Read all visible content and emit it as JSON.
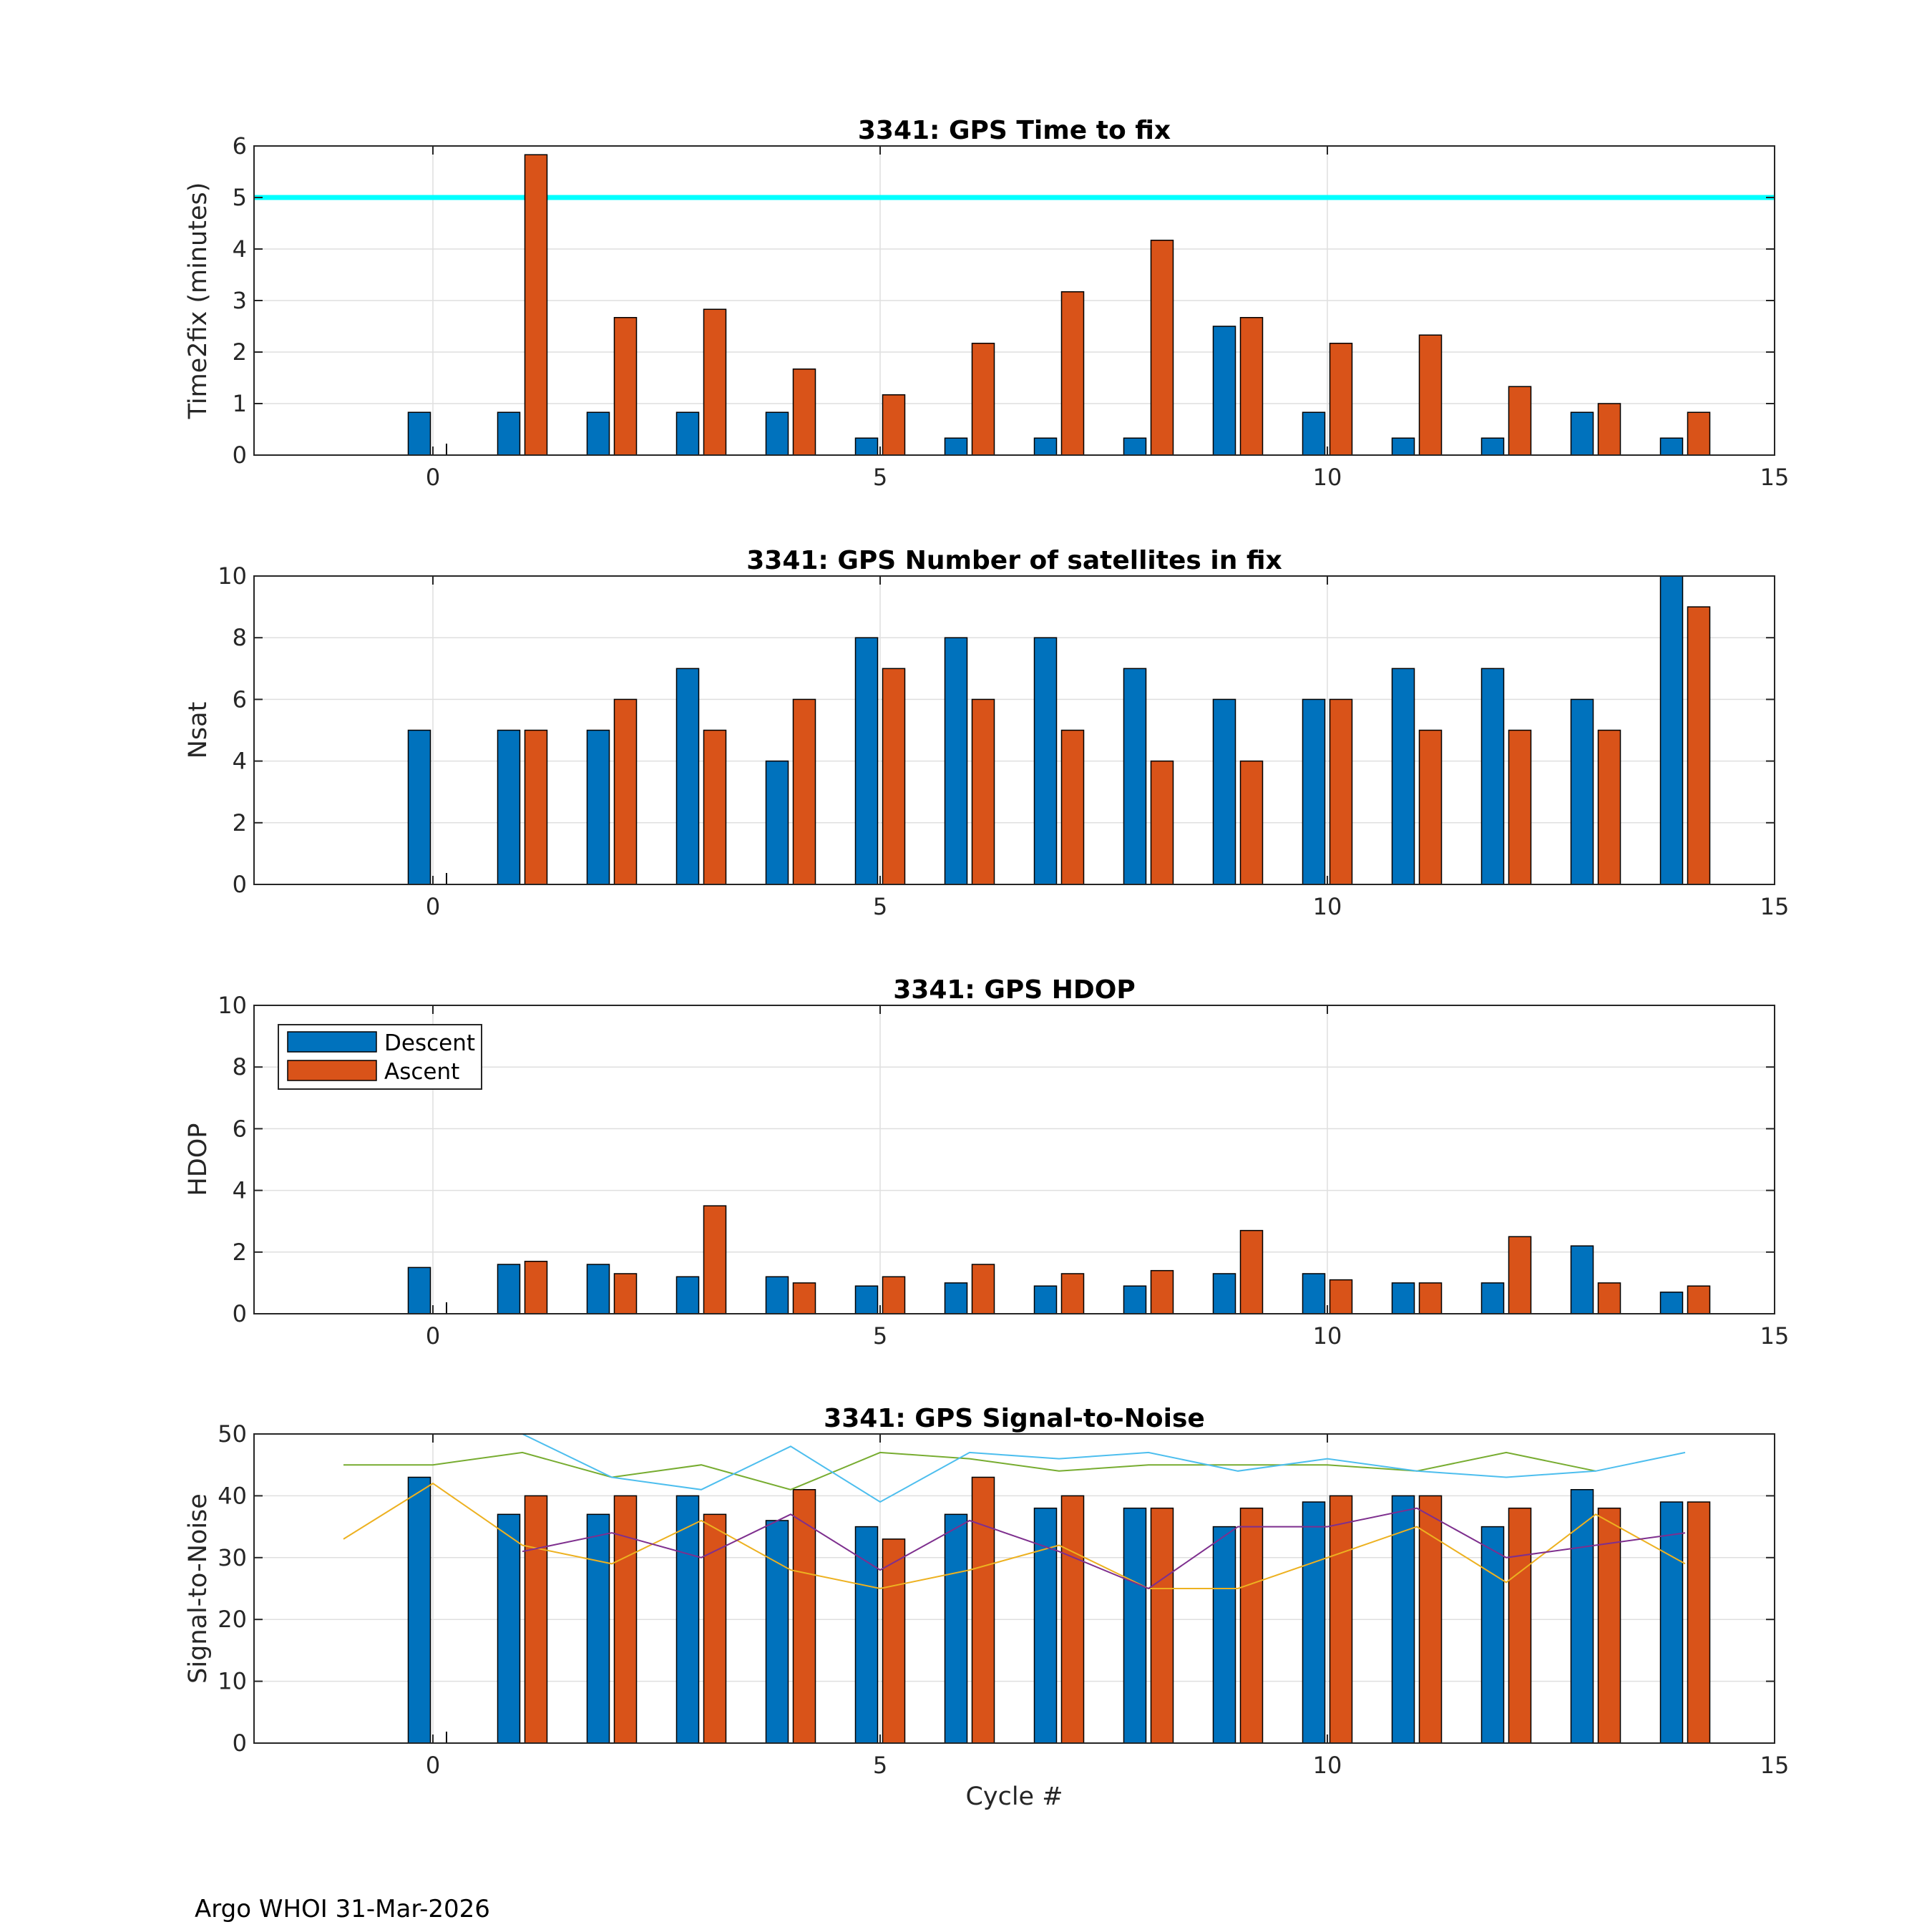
{
  "footer": "Argo WHOI 31-Mar-2026",
  "colors": {
    "descent": "#0072BD",
    "ascent": "#D95319",
    "threshold": "#00FFFF",
    "grid": "#DFDFDF",
    "line_green": "#77AC30",
    "line_cyan": "#4DBEEE",
    "line_orange": "#EDB120",
    "line_purple": "#7E2F8E"
  },
  "legend": {
    "descent": "Descent",
    "ascent": "Ascent"
  },
  "chart_data": [
    {
      "type": "bar",
      "title": "3341: GPS Time to fix",
      "xlabel": "",
      "ylabel": "Time2fix (minutes)",
      "xlim": [
        -2,
        15
      ],
      "ylim": [
        0,
        6
      ],
      "xticks": [
        0,
        5,
        10,
        15
      ],
      "yticks": [
        0,
        1,
        2,
        3,
        4,
        5,
        6
      ],
      "x": [
        0,
        1,
        2,
        3,
        4,
        5,
        6,
        7,
        8,
        9,
        10,
        11,
        12,
        13,
        14
      ],
      "series": [
        {
          "name": "Descent",
          "values": [
            0.83,
            0.83,
            0.83,
            0.83,
            0.83,
            0.33,
            0.33,
            0.33,
            0.33,
            2.5,
            0.83,
            0.33,
            0.33,
            0.83,
            0.33
          ]
        },
        {
          "name": "Ascent",
          "values": [
            null,
            5.83,
            2.67,
            2.83,
            1.67,
            1.17,
            2.17,
            3.17,
            4.17,
            2.67,
            2.17,
            2.33,
            1.33,
            1.0,
            0.83
          ]
        }
      ],
      "reference_line": {
        "y": 5,
        "label": ""
      }
    },
    {
      "type": "bar",
      "title": "3341: GPS Number of satellites in fix",
      "xlabel": "",
      "ylabel": "Nsat",
      "xlim": [
        -2,
        15
      ],
      "ylim": [
        0,
        10
      ],
      "xticks": [
        0,
        5,
        10,
        15
      ],
      "yticks": [
        0,
        2,
        4,
        6,
        8,
        10
      ],
      "x": [
        0,
        1,
        2,
        3,
        4,
        5,
        6,
        7,
        8,
        9,
        10,
        11,
        12,
        13,
        14
      ],
      "series": [
        {
          "name": "Descent",
          "values": [
            5,
            5,
            5,
            7,
            4,
            8,
            8,
            8,
            7,
            6,
            6,
            7,
            7,
            6,
            10
          ]
        },
        {
          "name": "Ascent",
          "values": [
            null,
            5,
            6,
            5,
            6,
            7,
            6,
            5,
            4,
            4,
            6,
            5,
            5,
            5,
            9
          ]
        }
      ]
    },
    {
      "type": "bar",
      "title": "3341: GPS HDOP",
      "xlabel": "",
      "ylabel": "HDOP",
      "xlim": [
        -2,
        15
      ],
      "ylim": [
        0,
        10
      ],
      "xticks": [
        0,
        5,
        10,
        15
      ],
      "yticks": [
        0,
        2,
        4,
        6,
        8,
        10
      ],
      "legend": "top-left",
      "x": [
        0,
        1,
        2,
        3,
        4,
        5,
        6,
        7,
        8,
        9,
        10,
        11,
        12,
        13,
        14
      ],
      "series": [
        {
          "name": "Descent",
          "values": [
            1.5,
            1.6,
            1.6,
            1.2,
            1.2,
            0.9,
            1.0,
            0.9,
            0.9,
            1.3,
            1.3,
            1.0,
            1.0,
            2.2,
            0.7
          ]
        },
        {
          "name": "Ascent",
          "values": [
            null,
            1.7,
            1.3,
            3.5,
            1.0,
            1.2,
            1.6,
            1.3,
            1.4,
            2.7,
            1.1,
            1.0,
            2.5,
            1.0,
            0.9
          ]
        }
      ]
    },
    {
      "type": "bar",
      "title": "3341: GPS Signal-to-Noise",
      "xlabel": "Cycle #",
      "ylabel": "Signal-to-Noise",
      "xlim": [
        -2,
        15
      ],
      "ylim": [
        0,
        50
      ],
      "xticks": [
        0,
        5,
        10,
        15
      ],
      "yticks": [
        0,
        10,
        20,
        30,
        40,
        50
      ],
      "x": [
        0,
        1,
        2,
        3,
        4,
        5,
        6,
        7,
        8,
        9,
        10,
        11,
        12,
        13,
        14
      ],
      "series": [
        {
          "name": "Descent",
          "values": [
            43,
            37,
            37,
            40,
            36,
            35,
            37,
            38,
            38,
            35,
            39,
            40,
            35,
            41,
            39
          ]
        },
        {
          "name": "Ascent",
          "values": [
            null,
            40,
            40,
            37,
            41,
            33,
            43,
            40,
            38,
            38,
            40,
            40,
            38,
            38,
            39
          ]
        }
      ],
      "lines": [
        {
          "color": "line_green",
          "points": [
            [
              -1,
              45
            ],
            [
              0,
              45
            ],
            [
              1,
              47
            ],
            [
              2,
              43
            ],
            [
              3,
              45
            ],
            [
              4,
              41
            ],
            [
              5,
              47
            ],
            [
              6,
              46
            ],
            [
              7,
              44
            ],
            [
              8,
              45
            ],
            [
              9,
              45
            ],
            [
              10,
              45
            ],
            [
              11,
              44
            ],
            [
              12,
              47
            ],
            [
              13,
              44
            ]
          ]
        },
        {
          "color": "line_cyan",
          "points": [
            [
              1,
              50
            ],
            [
              2,
              43
            ],
            [
              3,
              41
            ],
            [
              4,
              48
            ],
            [
              5,
              39
            ],
            [
              6,
              47
            ],
            [
              7,
              46
            ],
            [
              8,
              47
            ],
            [
              9,
              44
            ],
            [
              10,
              46
            ],
            [
              11,
              44
            ],
            [
              12,
              43
            ],
            [
              13,
              44
            ],
            [
              14,
              47
            ]
          ]
        },
        {
          "color": "line_orange",
          "points": [
            [
              -1,
              33
            ],
            [
              0,
              42
            ],
            [
              1,
              32
            ],
            [
              2,
              29
            ],
            [
              3,
              36
            ],
            [
              4,
              28
            ],
            [
              5,
              25
            ],
            [
              6,
              28
            ],
            [
              7,
              32
            ],
            [
              8,
              25
            ],
            [
              9,
              25
            ],
            [
              10,
              30
            ],
            [
              11,
              35
            ],
            [
              12,
              26
            ],
            [
              13,
              37
            ],
            [
              14,
              29
            ]
          ]
        },
        {
          "color": "line_purple",
          "points": [
            [
              1,
              31
            ],
            [
              2,
              34
            ],
            [
              3,
              30
            ],
            [
              4,
              37
            ],
            [
              5,
              28
            ],
            [
              6,
              36
            ],
            [
              7,
              31
            ],
            [
              8,
              25
            ],
            [
              9,
              35
            ],
            [
              10,
              35
            ],
            [
              11,
              38
            ],
            [
              12,
              30
            ],
            [
              13,
              32
            ],
            [
              14,
              34
            ]
          ]
        }
      ]
    }
  ]
}
